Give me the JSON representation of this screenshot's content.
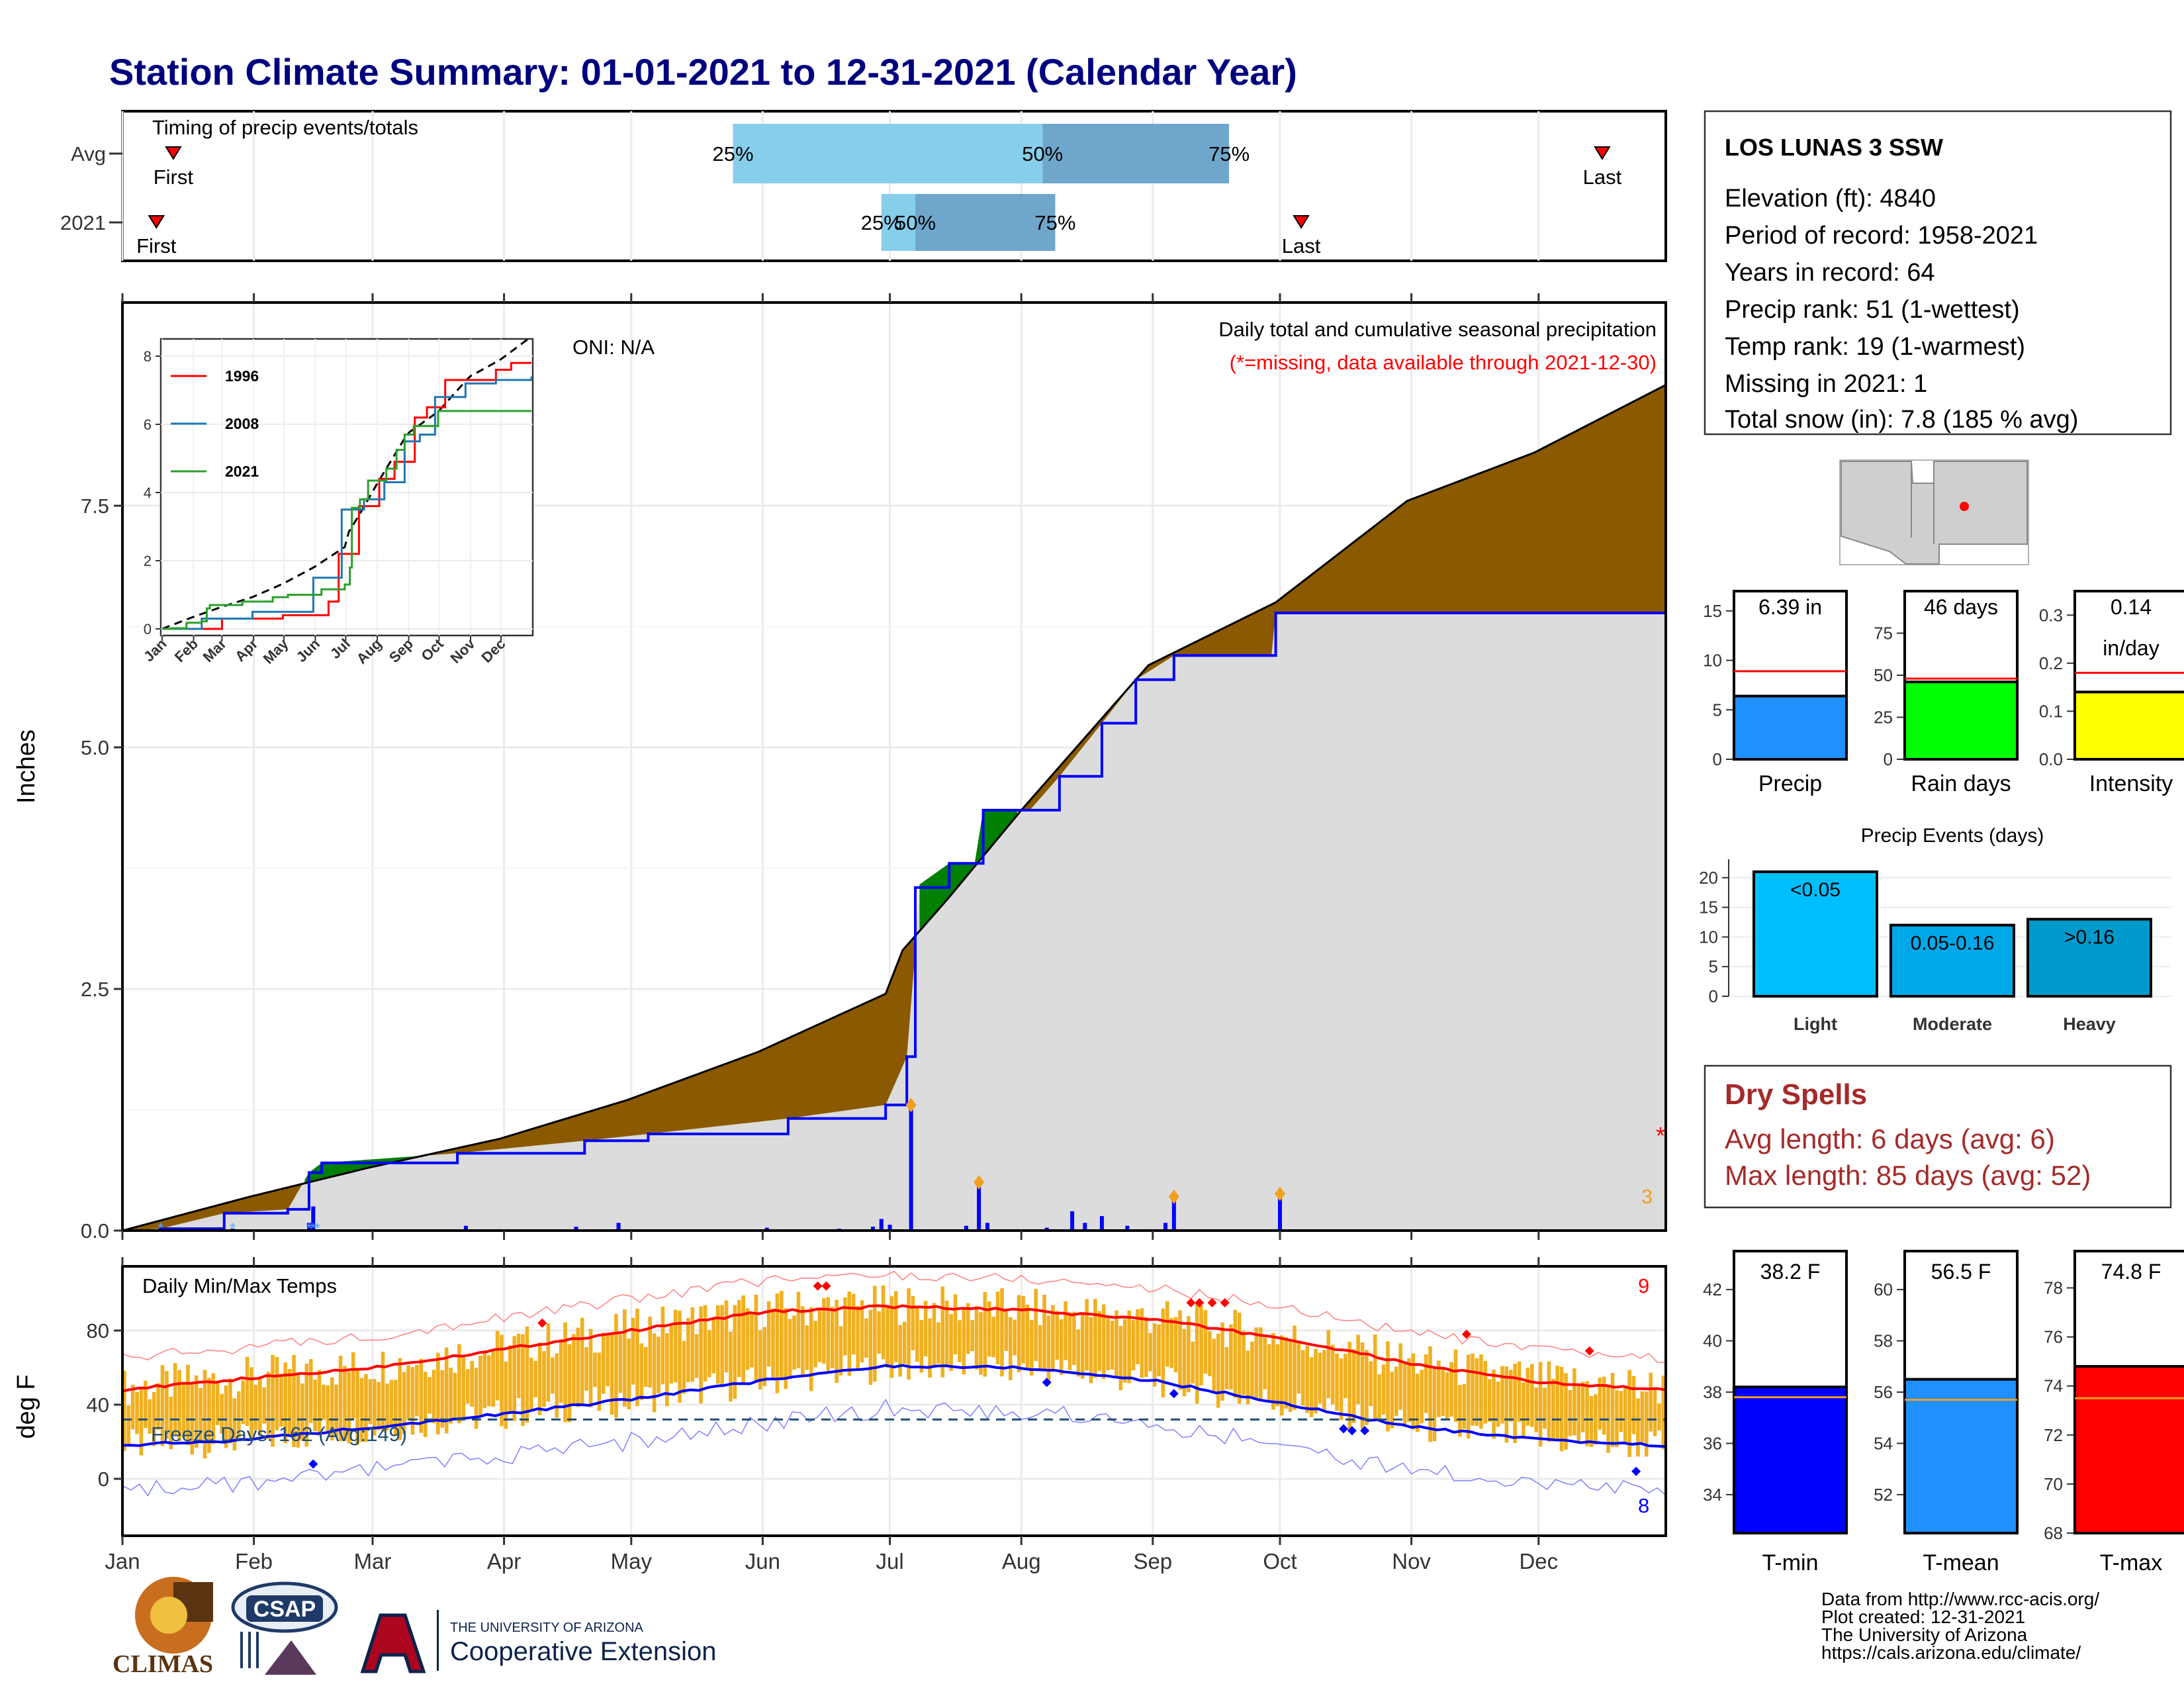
{
  "title": "Station Climate Summary: 01-01-2021 to 12-31-2021 (Calendar Year)",
  "colors": {
    "title": "#00007f",
    "cum_avg_fill": "#8b5a00",
    "cum_obs_fill": "#dcdcdc",
    "cum_above_fill": "#007f00",
    "obs_line": "#0000ff",
    "avg_line": "#000000",
    "q_light": "#87ceeb",
    "q_dark": "#6fa6cc",
    "tmax": "#ff0000",
    "tmin": "#0000ff",
    "temp_bar": "#f0b020",
    "precip_bar": "#1e90ff",
    "raindays_bar": "#00ff00",
    "intensity_bar": "#ffff00",
    "tmean_bar": "#1e90ff",
    "dry_spells": "#a52a2a"
  },
  "timing": {
    "title": "Timing of precip events/totals",
    "rows": [
      {
        "label": "Avg",
        "first_label": "First",
        "last_label": "Last",
        "first_doy": 13,
        "last_doy": 350,
        "q25_doy": 145,
        "q50_doy": 218,
        "q75_doy": 262,
        "q25_label": "25%",
        "q50_label": "50%",
        "q75_label": "75%"
      },
      {
        "label": "2021",
        "first_label": "First",
        "last_label": "Last",
        "first_doy": 9,
        "last_doy": 279,
        "q25_doy": 180,
        "q50_doy": 188,
        "q75_doy": 221,
        "q25_label": "25%",
        "q50_label": "50%",
        "q75_label": "75%"
      }
    ]
  },
  "month_labels": [
    "Jan",
    "Feb",
    "Mar",
    "Apr",
    "May",
    "Jun",
    "Jul",
    "Aug",
    "Sep",
    "Oct",
    "Nov",
    "Dec"
  ],
  "main": {
    "ylabel": "Inches",
    "oni": "ONI: N/A",
    "caption1": "Daily total and cumulative seasonal precipitation",
    "caption2": "(*=missing, data available through 2021-12-30)",
    "missing_marker": "*",
    "orange_count": "3",
    "y_ticks": [
      "0.0",
      "2.5",
      "5.0",
      "7.5"
    ],
    "inset": {
      "y_ticks": [
        "0",
        "2",
        "4",
        "6",
        "8"
      ],
      "x_ticks": [
        "Jan",
        "Feb",
        "Mar",
        "Apr",
        "May",
        "Jun",
        "Jul",
        "Aug",
        "Sep",
        "Oct",
        "Nov",
        "Dec"
      ],
      "legend": [
        {
          "name": "1996",
          "color": "#ff0000"
        },
        {
          "name": "2008",
          "color": "#1f77b4"
        },
        {
          "name": "2021",
          "color": "#2ca02c"
        }
      ]
    }
  },
  "temp": {
    "title": "Daily Min/Max Temps",
    "ylabel": "deg F",
    "freeze_label": "Freeze Days: 162 (Avg:149)",
    "record_high_count": "9",
    "record_low_count": "8",
    "y_ticks": [
      "0",
      "40",
      "80"
    ]
  },
  "station": {
    "name": "LOS LUNAS 3 SSW",
    "lines": [
      "Elevation (ft): 4840",
      "Period of record: 1958-2021",
      "Years in record: 64",
      "Precip rank: 51 (1-wettest)",
      "Temp rank: 19 (1-warmest)",
      "Missing in 2021: 1",
      "Total snow (in): 7.8 (185 % avg)"
    ]
  },
  "dry_spells": {
    "title": "Dry Spells",
    "avg_line": "Avg length: 6 days (avg: 6)",
    "max_line": "Max length: 85 days (avg: 52)"
  },
  "precip_events": {
    "title": "Precip Events (days)",
    "categories": [
      "Light",
      "Moderate",
      "Heavy"
    ],
    "bar_labels": [
      "<0.05",
      "0.05-0.16",
      ">0.16"
    ],
    "values": [
      21,
      12,
      13
    ],
    "y_ticks": [
      "0",
      "5",
      "10",
      "15",
      "20"
    ]
  },
  "mini_precip": [
    {
      "label": "Precip",
      "value_text": "6.39 in",
      "value": 6.39,
      "avg": 8.9,
      "ymax": 17,
      "ticks": [
        "0",
        "5",
        "10",
        "15"
      ],
      "tickvals": [
        0,
        5,
        10,
        15
      ],
      "color": "#1e90ff"
    },
    {
      "label": "Rain days",
      "value_text": "46 days",
      "value": 46,
      "avg": 48,
      "ymax": 100,
      "ticks": [
        "0",
        "25",
        "50",
        "75"
      ],
      "tickvals": [
        0,
        25,
        50,
        75
      ],
      "color": "#00ff00"
    },
    {
      "label": "Intensity",
      "value_text": "0.14",
      "value_text2": "in/day",
      "value": 0.14,
      "avg": 0.18,
      "ymax": 0.35,
      "ticks": [
        "0.0",
        "0.1",
        "0.2",
        "0.3"
      ],
      "tickvals": [
        0,
        0.1,
        0.2,
        0.3
      ],
      "color": "#ffff00"
    }
  ],
  "mini_temp": [
    {
      "label": "T-min",
      "value_text": "38.2 F",
      "value": 38.2,
      "avg": 37.8,
      "ymin": 32.5,
      "ymax": 43.5,
      "ticks": [
        "34",
        "36",
        "38",
        "40",
        "42"
      ],
      "tickvals": [
        34,
        36,
        38,
        40,
        42
      ],
      "color": "#0000ff"
    },
    {
      "label": "T-mean",
      "value_text": "56.5 F",
      "value": 56.5,
      "avg": 55.7,
      "ymin": 50.5,
      "ymax": 61.5,
      "ticks": [
        "52",
        "54",
        "56",
        "58",
        "60"
      ],
      "tickvals": [
        52,
        54,
        56,
        58,
        60
      ],
      "color": "#1e90ff"
    },
    {
      "label": "T-max",
      "value_text": "74.8 F",
      "value": 74.8,
      "avg": 73.5,
      "ymin": 68,
      "ymax": 79.5,
      "ticks": [
        "68",
        "70",
        "72",
        "74",
        "76",
        "78"
      ],
      "tickvals": [
        68,
        70,
        72,
        74,
        76,
        78
      ],
      "color": "#ff0000"
    }
  ],
  "footer": {
    "lines": [
      "Data from http://www.rcc-acis.org/",
      "Plot created: 12-31-2021",
      "The University of Arizona",
      "https://cals.arizona.edu/climate/"
    ],
    "climas": "CLIMAS",
    "csap": "CSAP",
    "ua_small": "THE UNIVERSITY OF ARIZONA",
    "coop_ext": "Cooperative Extension"
  },
  "chart_data": [
    {
      "type": "area",
      "title": "Daily total and cumulative seasonal precipitation",
      "ylabel": "Inches",
      "ylim": [
        0,
        8.8
      ],
      "x_unit": "day of year 2021",
      "series": [
        {
          "name": "avg_cumulative",
          "points": [
            [
              1,
              0
            ],
            [
              31,
              0.35
            ],
            [
              59,
              0.65
            ],
            [
              90,
              0.95
            ],
            [
              120,
              1.35
            ],
            [
              151,
              1.85
            ],
            [
              181,
              2.45
            ],
            [
              185,
              2.9
            ],
            [
              196,
              3.45
            ],
            [
              213,
              4.35
            ],
            [
              243,
              5.85
            ],
            [
              273,
              6.5
            ],
            [
              304,
              7.55
            ],
            [
              334,
              8.05
            ],
            [
              365,
              8.75
            ]
          ]
        },
        {
          "name": "2021_cumulative",
          "points": [
            [
              1,
              0
            ],
            [
              10,
              0.02
            ],
            [
              25,
              0.18
            ],
            [
              40,
              0.22
            ],
            [
              45,
              0.6
            ],
            [
              48,
              0.7
            ],
            [
              80,
              0.8
            ],
            [
              110,
              0.93
            ],
            [
              125,
              1.0
            ],
            [
              158,
              1.16
            ],
            [
              181,
              1.3
            ],
            [
              186,
              1.8
            ],
            [
              188,
              2.9
            ],
            [
              188,
              3.55
            ],
            [
              196,
              3.8
            ],
            [
              202,
              3.8
            ],
            [
              204,
              4.35
            ],
            [
              215,
              4.35
            ],
            [
              222,
              4.7
            ],
            [
              232,
              5.25
            ],
            [
              240,
              5.7
            ],
            [
              249,
              5.95
            ],
            [
              272,
              5.95
            ],
            [
              273,
              6.39
            ],
            [
              365,
              6.39
            ]
          ]
        },
        {
          "name": "daily_precip",
          "points": [
            [
              10,
              0.03
            ],
            [
              27,
              0.02
            ],
            [
              45,
              0.08
            ],
            [
              46,
              0.25
            ],
            [
              82,
              0.05
            ],
            [
              108,
              0.04
            ],
            [
              118,
              0.08
            ],
            [
              153,
              0.03
            ],
            [
              170,
              0.02
            ],
            [
              178,
              0.04
            ],
            [
              180,
              0.12
            ],
            [
              182,
              0.06
            ],
            [
              187,
              1.3
            ],
            [
              200,
              0.05
            ],
            [
              205,
              0.08
            ],
            [
              203,
              0.5
            ],
            [
              219,
              0.03
            ],
            [
              225,
              0.2
            ],
            [
              228,
              0.08
            ],
            [
              232,
              0.15
            ],
            [
              238,
              0.05
            ],
            [
              247,
              0.08
            ],
            [
              249,
              0.35
            ],
            [
              274,
              0.38
            ]
          ]
        }
      ]
    },
    {
      "type": "line",
      "title": "Daily Min/Max Temps",
      "ylabel": "deg F",
      "ylim": [
        -25,
        110
      ],
      "x_unit": "day of year 2021",
      "series": [
        {
          "name": "avg_max",
          "points": [
            [
              1,
              48
            ],
            [
              30,
              54
            ],
            [
              60,
              60
            ],
            [
              91,
              70
            ],
            [
              121,
              80
            ],
            [
              152,
              90
            ],
            [
              182,
              93
            ],
            [
              213,
              91
            ],
            [
              244,
              86
            ],
            [
              274,
              76
            ],
            [
              305,
              62
            ],
            [
              335,
              52
            ],
            [
              365,
              48
            ]
          ]
        },
        {
          "name": "avg_min",
          "points": [
            [
              1,
              18
            ],
            [
              30,
              21
            ],
            [
              60,
              28
            ],
            [
              91,
              35
            ],
            [
              121,
              43
            ],
            [
              152,
              53
            ],
            [
              182,
              61
            ],
            [
              213,
              60
            ],
            [
              244,
              53
            ],
            [
              274,
              41
            ],
            [
              305,
              28
            ],
            [
              335,
              21
            ],
            [
              365,
              18
            ]
          ]
        },
        {
          "name": "freeze_threshold",
          "points": [
            [
              1,
              32
            ],
            [
              365,
              32
            ]
          ]
        }
      ]
    }
  ]
}
